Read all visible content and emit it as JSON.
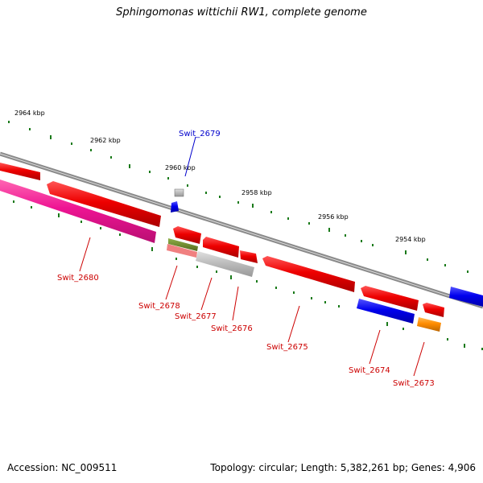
{
  "title": "Sphingomonas wittichii RW1, complete genome",
  "footer": {
    "accession": "Accession: NC_009511",
    "summary": "Topology: circular; Length: 5,382,261 bp; Genes: 4,906"
  },
  "ticks": [
    {
      "label": "2964 kbp"
    },
    {
      "label": "2962 kbp"
    },
    {
      "label": "2960 kbp"
    },
    {
      "label": "2958 kbp"
    },
    {
      "label": "2956 kbp"
    },
    {
      "label": "2954 kbp"
    }
  ],
  "genes": [
    {
      "name": "Swit_2679",
      "color": "#0000cc"
    },
    {
      "name": "Swit_2680",
      "color": "#cc0000"
    },
    {
      "name": "Swit_2678",
      "color": "#cc0000"
    },
    {
      "name": "Swit_2677",
      "color": "#cc0000"
    },
    {
      "name": "Swit_2676",
      "color": "#cc0000"
    },
    {
      "name": "Swit_2675",
      "color": "#cc0000"
    },
    {
      "name": "Swit_2674",
      "color": "#cc0000"
    },
    {
      "name": "Swit_2673",
      "color": "#cc0000"
    }
  ],
  "colors": {
    "backbone": "#8a8a8a",
    "tick_dot": "#1a7a1a",
    "cds_red": "#ee0000",
    "cds_blue": "#0000ee",
    "cds_pink": "#ee1493",
    "cds_gray": "#bbbbbb",
    "cds_green": "#6b8e23",
    "cds_orange": "#ff8c00"
  }
}
